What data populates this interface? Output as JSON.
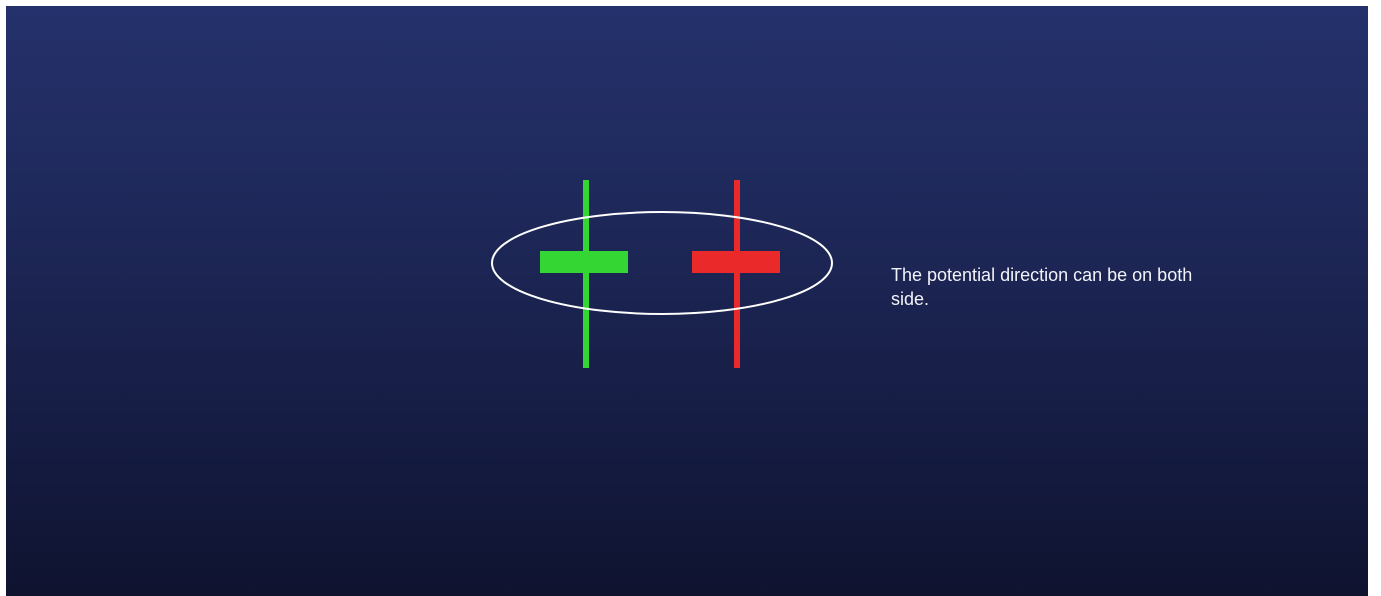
{
  "caption": "The potential direction can be on both side.",
  "colors": {
    "background_top": "#25316c",
    "background_bottom": "#0f1330",
    "bullish_candle": "#33d633",
    "bearish_candle": "#ea2a2a",
    "highlight_ellipse": "#ffffff",
    "caption_text": "#f2f3f8"
  },
  "candles": [
    {
      "name": "green",
      "color": "#33d633"
    },
    {
      "name": "red",
      "color": "#ea2a2a"
    }
  ]
}
